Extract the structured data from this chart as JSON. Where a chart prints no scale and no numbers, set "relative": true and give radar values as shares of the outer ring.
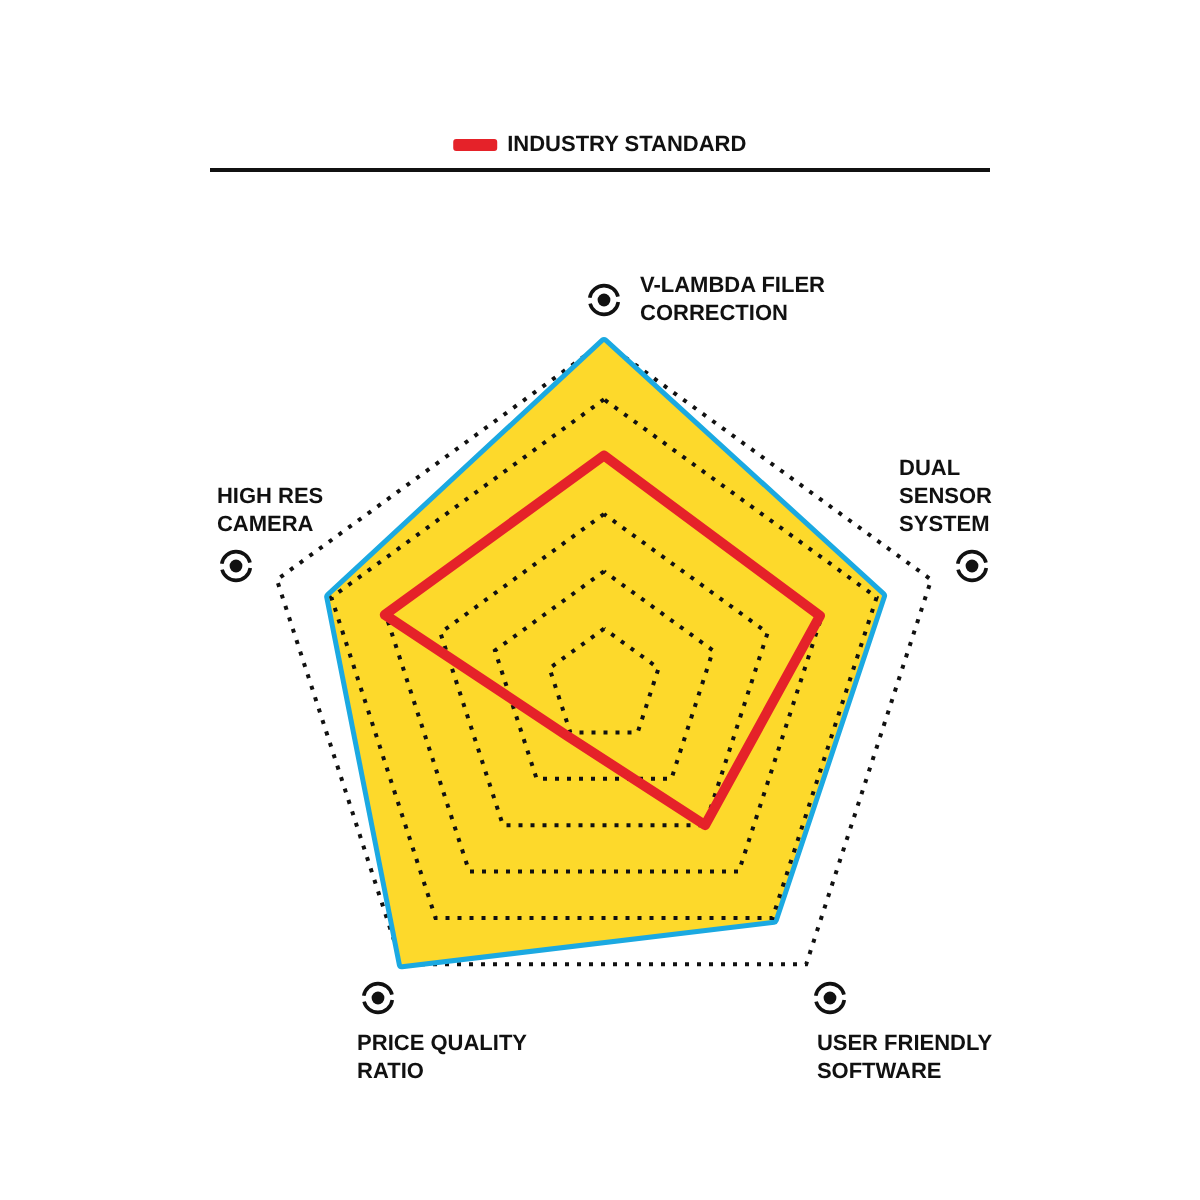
{
  "chart_data": {
    "type": "radar",
    "relative": true,
    "categories": [
      "V-LAMBDA FILER\nCORRECTION",
      "DUAL\nSENSOR\nSYSTEM",
      "USER FRIENDLY\nSOFTWARE",
      "PRICE QUALITY\nRATIO",
      "HIGH RES\nCAMERA"
    ],
    "series": [
      {
        "type": "area",
        "color": "#1ba9e1",
        "values": [
          1,
          0.85,
          0.84,
          1,
          0.84
        ]
      },
      {
        "name": "INDUSTRY STANDARD",
        "color": "#e52229",
        "values": [
          0.67,
          0.66,
          0.5,
          0.18,
          0.67
        ]
      }
    ],
    "grid": true,
    "legend": "top",
    "marker": "none",
    "line_style": "solid"
  }
}
